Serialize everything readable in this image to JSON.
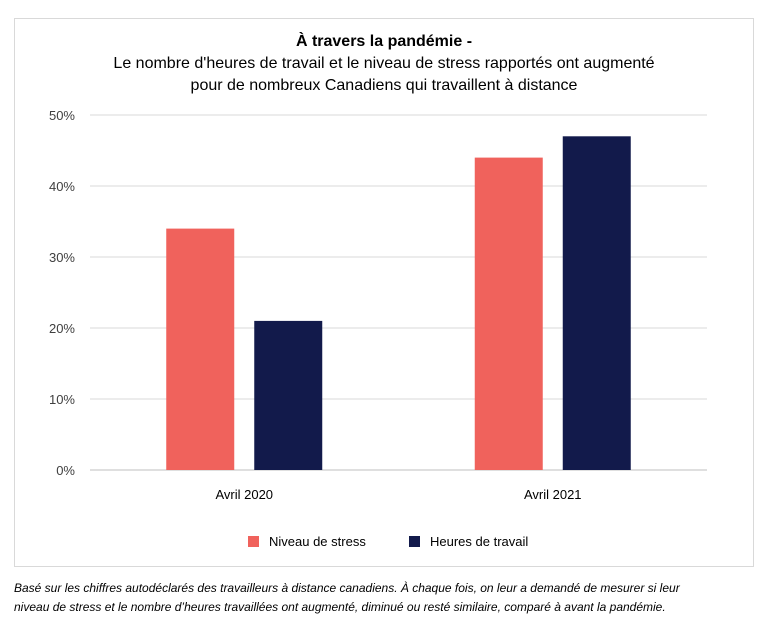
{
  "chart_data": {
    "type": "bar",
    "title": "À travers la pandémie -",
    "subtitle_lines": [
      "Le nombre d'heures de travail et le niveau de stress rapportés ont augmenté",
      "pour de nombreux Canadiens qui travaillent à distance"
    ],
    "categories": [
      "Avril 2020",
      "Avril 2021"
    ],
    "series": [
      {
        "name": "Niveau de stress",
        "values": [
          34,
          44
        ],
        "color": "#f0625c"
      },
      {
        "name": "Heures de travail",
        "values": [
          21,
          47
        ],
        "color": "#121a4b"
      }
    ],
    "ylim": [
      0,
      50
    ],
    "y_ticks": [
      0,
      10,
      20,
      30,
      40,
      50
    ],
    "y_tick_labels": [
      "0%",
      "10%",
      "20%",
      "30%",
      "40%",
      "50%"
    ],
    "grid": true,
    "legend_position": "bottom",
    "xlabel": "",
    "ylabel": ""
  },
  "footnote_lines": [
    "Basé sur les chiffres autodéclarés des travailleurs à distance canadiens. À chaque fois, on leur a demandé de mesurer si leur",
    "niveau de stress et le nombre d’heures travaillées ont augmenté, diminué ou resté similaire, comparé à avant la pandémie."
  ]
}
